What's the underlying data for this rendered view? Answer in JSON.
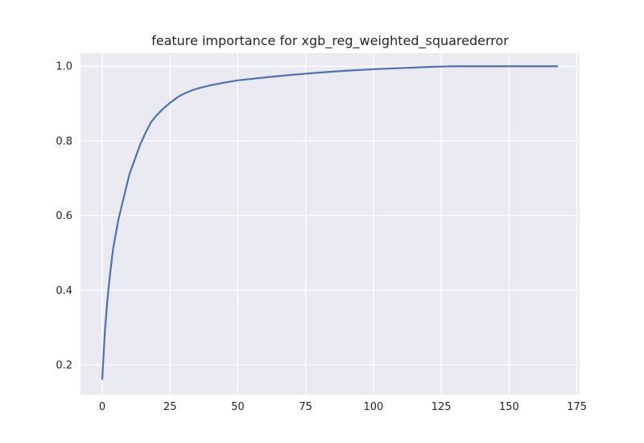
{
  "chart_data": {
    "type": "line",
    "title": "feature importance for xgb_reg_weighted_squarederror",
    "xlabel": "",
    "ylabel": "",
    "xlim": [
      -8,
      176
    ],
    "ylim": [
      0.12,
      1.035
    ],
    "xticks": [
      0,
      25,
      50,
      75,
      100,
      125,
      150,
      175
    ],
    "yticks": [
      0.2,
      0.4,
      0.6,
      0.8,
      1.0
    ],
    "xtick_labels": [
      "0",
      "25",
      "50",
      "75",
      "100",
      "125",
      "150",
      "175"
    ],
    "ytick_labels": [
      "0.2",
      "0.4",
      "0.6",
      "0.8",
      "1.0"
    ],
    "grid": true,
    "legend": "none",
    "colors": {
      "background": "#eaeaf2",
      "grid": "#ffffff",
      "line": "#4c72b0"
    },
    "series": [
      {
        "values_x": [
          0,
          1,
          2,
          3,
          4,
          5,
          6,
          8,
          10,
          12,
          14,
          16,
          18,
          20,
          22,
          25,
          28,
          30,
          33,
          36,
          40,
          45,
          50,
          60,
          70,
          80,
          90,
          100,
          110,
          120,
          125,
          130,
          140,
          150,
          160,
          168
        ],
        "values_y": [
          0.16,
          0.29,
          0.38,
          0.45,
          0.51,
          0.55,
          0.59,
          0.65,
          0.71,
          0.75,
          0.79,
          0.822,
          0.85,
          0.868,
          0.883,
          0.902,
          0.918,
          0.926,
          0.935,
          0.942,
          0.949,
          0.956,
          0.962,
          0.97,
          0.977,
          0.983,
          0.988,
          0.992,
          0.995,
          0.998,
          0.999,
          1.0,
          1.0,
          1.0,
          1.0,
          1.0
        ]
      }
    ]
  }
}
